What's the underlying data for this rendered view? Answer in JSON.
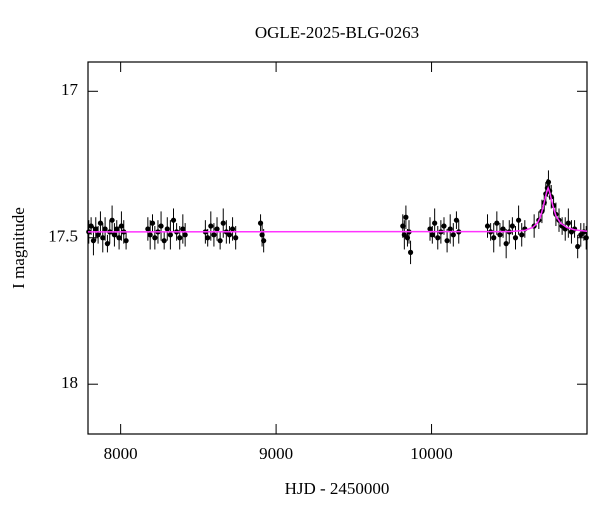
{
  "chart_data": {
    "type": "scatter",
    "title": "OGLE-2025-BLG-0263",
    "x_label": "HJD - 2450000",
    "y_label": "I magnitude",
    "xlim": [
      7790,
      11000
    ],
    "ylim": [
      16.9,
      18.17
    ],
    "y_inverted": true,
    "xticks": [
      8000,
      9000,
      10000
    ],
    "yticks": [
      17,
      17.5,
      18
    ],
    "series": [
      {
        "type": "scatter",
        "color": "#000000",
        "x": [
          7795,
          7810,
          7825,
          7840,
          7855,
          7870,
          7885,
          7900,
          7915,
          7930,
          7945,
          7960,
          7975,
          7990,
          8005,
          8020,
          8035,
          8175,
          8190,
          8205,
          8220,
          8240,
          8260,
          8280,
          8300,
          8320,
          8340,
          8360,
          8380,
          8400,
          8415,
          8545,
          8560,
          8580,
          8600,
          8620,
          8640,
          8660,
          8680,
          8700,
          8720,
          8740,
          8900,
          8910,
          8920,
          9815,
          9825,
          9835,
          9845,
          9855,
          9865,
          9990,
          10005,
          10020,
          10040,
          10060,
          10080,
          10100,
          10120,
          10140,
          10160,
          10175,
          10360,
          10380,
          10400,
          10420,
          10440,
          10460,
          10480,
          10500,
          10520,
          10540,
          10560,
          10580,
          10600,
          10660,
          10690,
          10710,
          10725,
          10735,
          10745,
          10752,
          10760,
          10770,
          10785,
          10800,
          10820,
          10840,
          10860,
          10880,
          10900,
          10920,
          10940,
          10960,
          10980,
          10995
        ],
        "values": [
          17.48,
          17.46,
          17.51,
          17.47,
          17.49,
          17.45,
          17.5,
          17.47,
          17.52,
          17.48,
          17.44,
          17.49,
          17.47,
          17.5,
          17.46,
          17.48,
          17.51,
          17.47,
          17.49,
          17.45,
          17.5,
          17.48,
          17.46,
          17.51,
          17.47,
          17.49,
          17.44,
          17.48,
          17.5,
          17.47,
          17.49,
          17.48,
          17.5,
          17.46,
          17.49,
          17.47,
          17.51,
          17.45,
          17.48,
          17.49,
          17.47,
          17.5,
          17.45,
          17.49,
          17.51,
          17.46,
          17.49,
          17.43,
          17.5,
          17.48,
          17.55,
          17.47,
          17.49,
          17.45,
          17.5,
          17.48,
          17.46,
          17.51,
          17.47,
          17.49,
          17.44,
          17.48,
          17.46,
          17.48,
          17.5,
          17.45,
          17.49,
          17.47,
          17.52,
          17.48,
          17.46,
          17.5,
          17.44,
          17.49,
          17.47,
          17.46,
          17.44,
          17.41,
          17.38,
          17.35,
          17.33,
          17.31,
          17.34,
          17.36,
          17.39,
          17.42,
          17.44,
          17.46,
          17.47,
          17.45,
          17.48,
          17.47,
          17.53,
          17.49,
          17.48,
          17.5
        ],
        "errors": [
          0.04,
          0.03,
          0.05,
          0.04,
          0.03,
          0.04,
          0.05,
          0.04,
          0.03,
          0.04,
          0.05,
          0.04,
          0.03,
          0.04,
          0.05,
          0.04,
          0.03,
          0.04,
          0.05,
          0.03,
          0.04,
          0.04,
          0.05,
          0.03,
          0.04,
          0.05,
          0.04,
          0.03,
          0.04,
          0.05,
          0.04,
          0.04,
          0.03,
          0.05,
          0.04,
          0.04,
          0.03,
          0.05,
          0.04,
          0.03,
          0.04,
          0.04,
          0.03,
          0.04,
          0.04,
          0.04,
          0.05,
          0.04,
          0.03,
          0.04,
          0.04,
          0.04,
          0.03,
          0.05,
          0.04,
          0.04,
          0.03,
          0.04,
          0.05,
          0.04,
          0.03,
          0.04,
          0.04,
          0.03,
          0.05,
          0.04,
          0.04,
          0.03,
          0.05,
          0.04,
          0.03,
          0.04,
          0.05,
          0.04,
          0.03,
          0.04,
          0.03,
          0.04,
          0.03,
          0.04,
          0.03,
          0.04,
          0.03,
          0.04,
          0.03,
          0.04,
          0.04,
          0.03,
          0.04,
          0.05,
          0.04,
          0.03,
          0.04,
          0.04,
          0.03,
          0.04
        ]
      },
      {
        "type": "line",
        "color": "#ff33ff",
        "x": [
          7790,
          10500,
          10600,
          10650,
          10680,
          10700,
          10720,
          10740,
          10750,
          10760,
          10780,
          10800,
          10830,
          10870,
          10920,
          11000
        ],
        "values": [
          17.48,
          17.479,
          17.475,
          17.465,
          17.45,
          17.43,
          17.39,
          17.345,
          17.33,
          17.345,
          17.39,
          17.425,
          17.45,
          17.465,
          17.473,
          17.478
        ]
      }
    ]
  }
}
